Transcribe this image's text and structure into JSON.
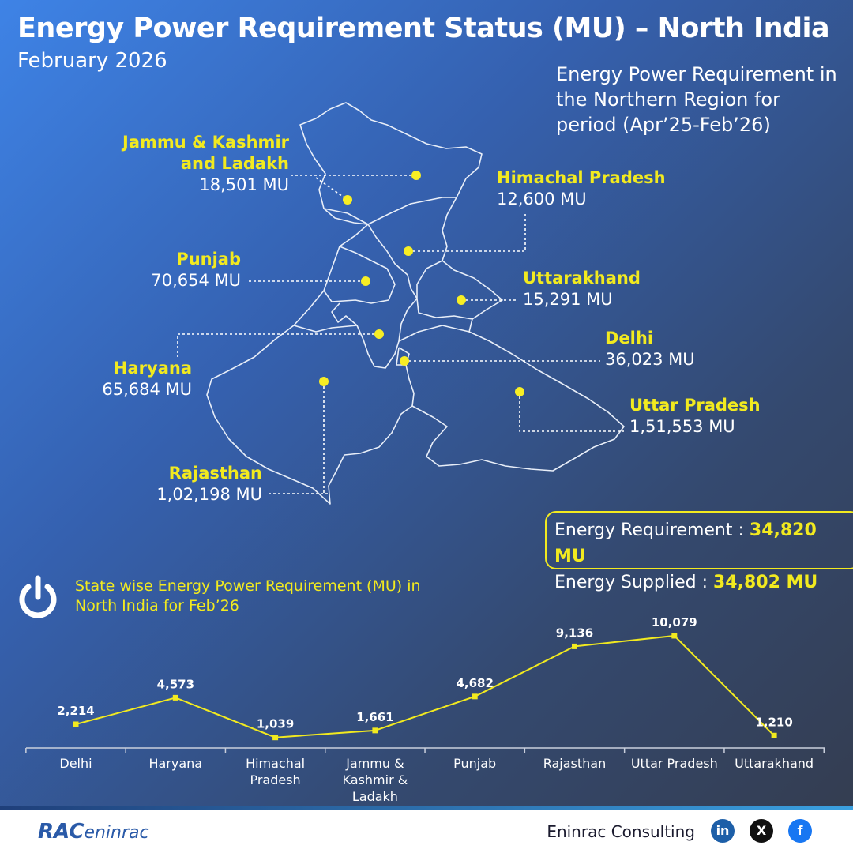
{
  "header": {
    "title": "Energy Power Requirement Status (MU) – North India",
    "subtitle": "February 2026"
  },
  "map": {
    "caption": "Energy Power Requirement in the Northern Region for period (Apr’25-Feb’26)",
    "states": [
      {
        "name": "Jammu & Kashmir and Ladakh",
        "value": "18,501 MU"
      },
      {
        "name": "Himachal Pradesh",
        "value": "12,600 MU"
      },
      {
        "name": "Punjab",
        "value": "70,654 MU"
      },
      {
        "name": "Uttarakhand",
        "value": "15,291 MU"
      },
      {
        "name": "Delhi",
        "value": "36,023 MU"
      },
      {
        "name": "Haryana",
        "value": "65,684 MU"
      },
      {
        "name": "Uttar Pradesh",
        "value": "1,51,553 MU"
      },
      {
        "name": "Rajasthan",
        "value": "1,02,198 MU"
      }
    ]
  },
  "summary": {
    "requirement_label": "Energy Requirement :",
    "requirement_value": "34,820 MU",
    "supplied_label": "Energy Supplied :",
    "supplied_value": "34,802 MU"
  },
  "chart_data": {
    "type": "line",
    "title": "State wise Energy Power Requirement (MU) in North India for Feb’26",
    "categories": [
      "Delhi",
      "Haryana",
      "Himachal Pradesh",
      "Jammu & Kashmir & Ladakh",
      "Punjab",
      "Rajasthan",
      "Uttar Pradesh",
      "Uttarakhand"
    ],
    "values": [
      2214,
      4573,
      1039,
      1661,
      4682,
      9136,
      10079,
      1210
    ],
    "value_labels": [
      "2,214",
      "4,573",
      "1,039",
      "1,661",
      "4,682",
      "9,136",
      "10,079",
      "1,210"
    ],
    "color": "#f2ea1f"
  },
  "footer": {
    "logo_mark": "RAC",
    "logo_text": "eninrac",
    "brand": "Eninrac Consulting",
    "social": [
      "in",
      "X",
      "f"
    ]
  }
}
